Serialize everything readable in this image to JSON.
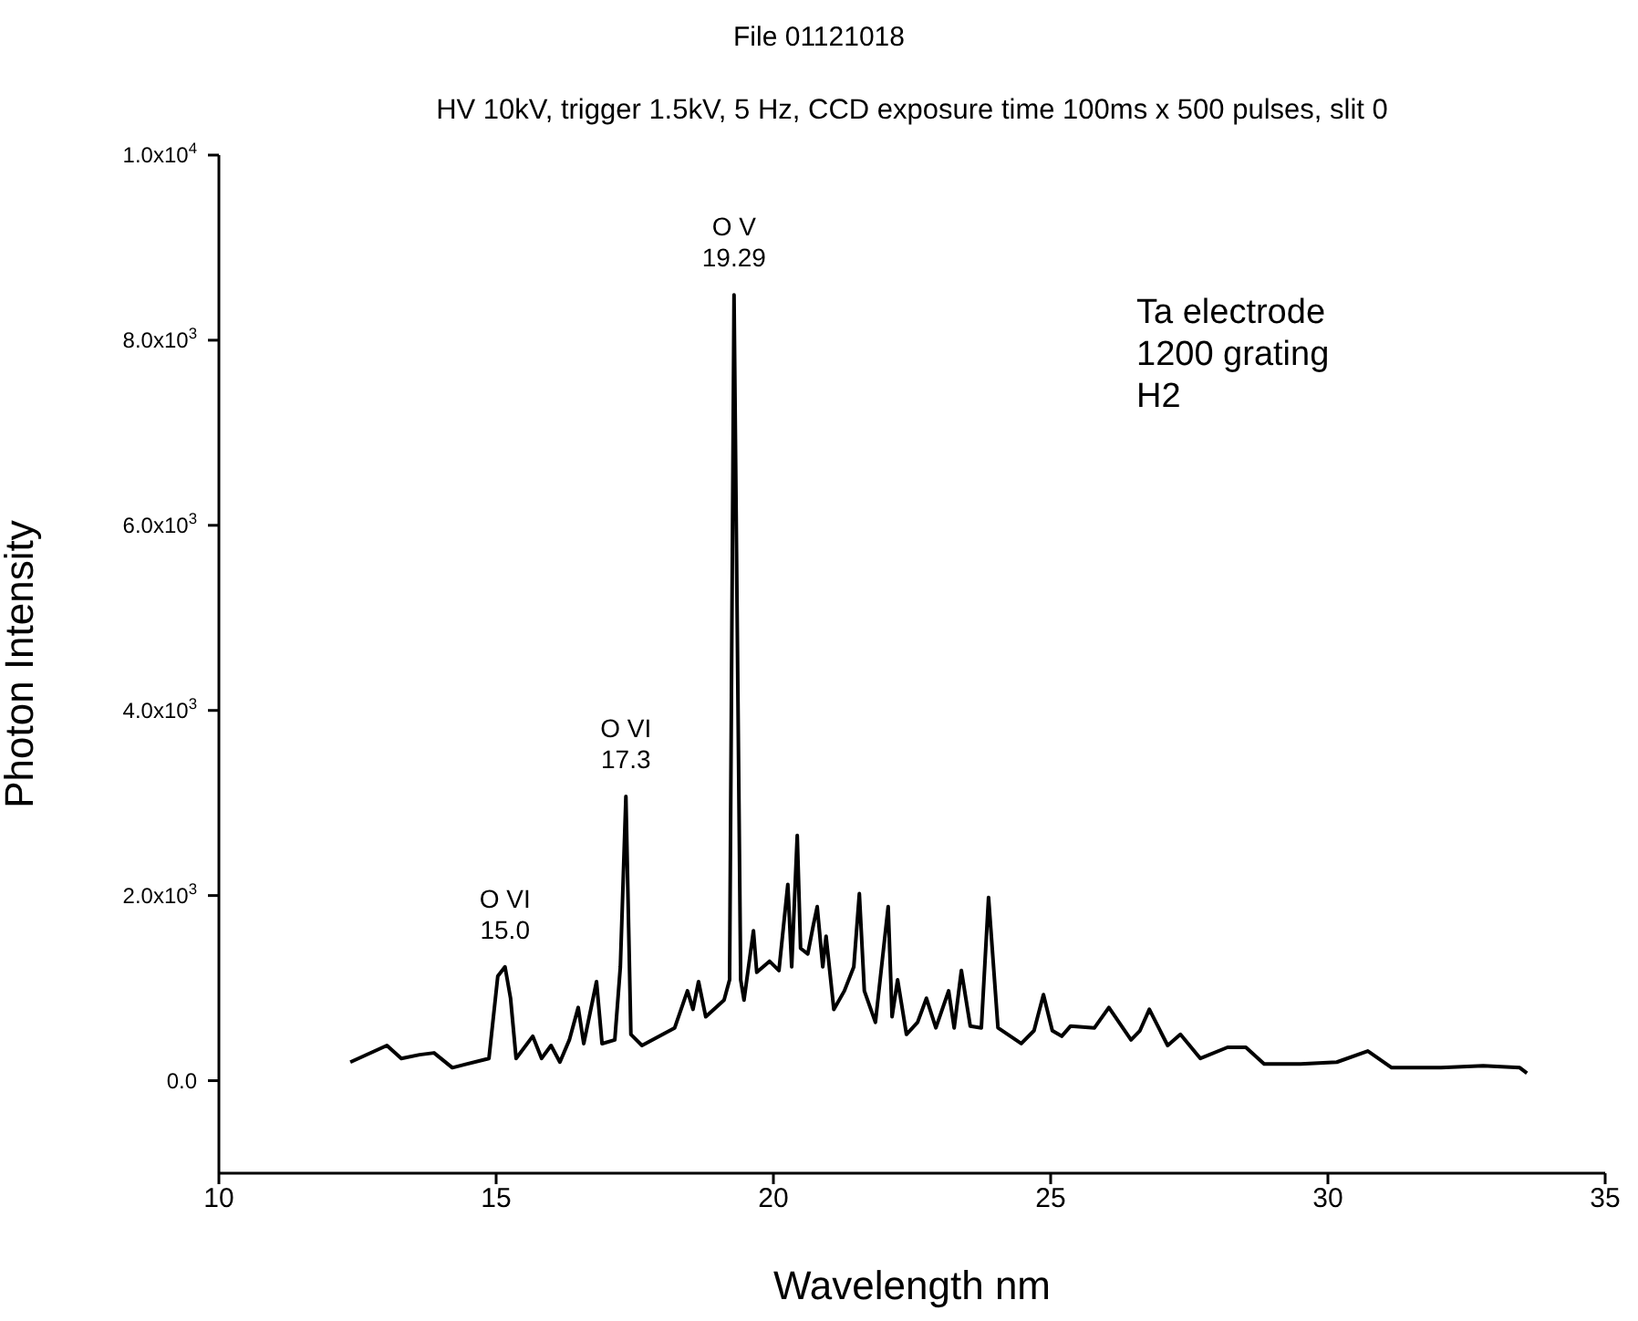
{
  "chart_data": {
    "type": "line",
    "title": "File 01121018",
    "subtitle": "HV 10kV, trigger 1.5kV, 5 Hz, CCD exposure time 100ms x 500 pulses, slit 0",
    "xlabel": "Wavelength nm",
    "ylabel": "Photon Intensity",
    "x": [
      12.37,
      13.03,
      13.29,
      13.62,
      13.88,
      14.21,
      14.87,
      15.03,
      15.16,
      15.26,
      15.36,
      15.66,
      15.82,
      15.99,
      16.15,
      16.32,
      16.48,
      16.58,
      16.81,
      16.91,
      17.14,
      17.24,
      17.34,
      17.43,
      17.63,
      18.22,
      18.45,
      18.55,
      18.65,
      18.78,
      19.11,
      19.21,
      19.29,
      19.41,
      19.47,
      19.64,
      19.7,
      19.93,
      20.1,
      20.26,
      20.33,
      20.43,
      20.49,
      20.62,
      20.72,
      20.79,
      20.89,
      20.95,
      21.09,
      21.28,
      21.45,
      21.55,
      21.64,
      21.84,
      22.07,
      22.14,
      22.24,
      22.4,
      22.6,
      22.76,
      22.93,
      23.16,
      23.26,
      23.39,
      23.55,
      23.75,
      23.88,
      24.05,
      24.47,
      24.7,
      24.87,
      25.03,
      25.2,
      25.36,
      25.79,
      26.05,
      26.45,
      26.61,
      26.78,
      27.11,
      27.34,
      27.7,
      28.19,
      28.52,
      28.85,
      29.51,
      30.16,
      30.72,
      31.15,
      32.04,
      32.8,
      33.46,
      33.59
    ],
    "series": [
      {
        "color": "#000000",
        "values": [
          200,
          380,
          240,
          280,
          300,
          140,
          240,
          1130,
          1230,
          890,
          240,
          480,
          240,
          380,
          200,
          440,
          790,
          400,
          1070,
          400,
          440,
          1230,
          3070,
          500,
          380,
          570,
          970,
          770,
          1070,
          690,
          870,
          1090,
          8490,
          1090,
          870,
          1620,
          1170,
          1290,
          1190,
          2120,
          1230,
          2650,
          1430,
          1370,
          1680,
          1880,
          1230,
          1560,
          770,
          970,
          1230,
          2020,
          970,
          630,
          1880,
          690,
          1090,
          500,
          630,
          890,
          570,
          970,
          570,
          1190,
          590,
          570,
          1980,
          570,
          400,
          540,
          930,
          540,
          480,
          590,
          570,
          790,
          440,
          540,
          770,
          380,
          500,
          240,
          360,
          360,
          180,
          180,
          200,
          320,
          140,
          140,
          160,
          140,
          80
        ]
      }
    ],
    "xlim": [
      10,
      35
    ],
    "xticks": [
      10,
      15,
      20,
      25,
      30,
      35
    ],
    "ylim": [
      -1000,
      10000
    ],
    "yticks": [
      {
        "value": 0,
        "label": "0.0"
      },
      {
        "value": 2000,
        "label": "2.0x10$^{3}$"
      },
      {
        "value": 4000,
        "label": "4.0x10$^{3}$"
      },
      {
        "value": 6000,
        "label": "6.0x10$^{3}$"
      },
      {
        "value": 8000,
        "label": "8.0x10$^{3}$"
      },
      {
        "value": 10000,
        "label": "1.0x10$^{4}$"
      }
    ],
    "annotations": [
      {
        "text": "O VI\n15.0",
        "x": 15.16,
        "y": 1228
      },
      {
        "text": "O VI\n17.3",
        "x": 17.34,
        "y": 3069
      },
      {
        "text": "O V\n19.29",
        "x": 19.29,
        "y": 8490
      },
      "Ta electrode\n1200 grating\nH2"
    ],
    "marker": "none",
    "line_style": "solid"
  }
}
